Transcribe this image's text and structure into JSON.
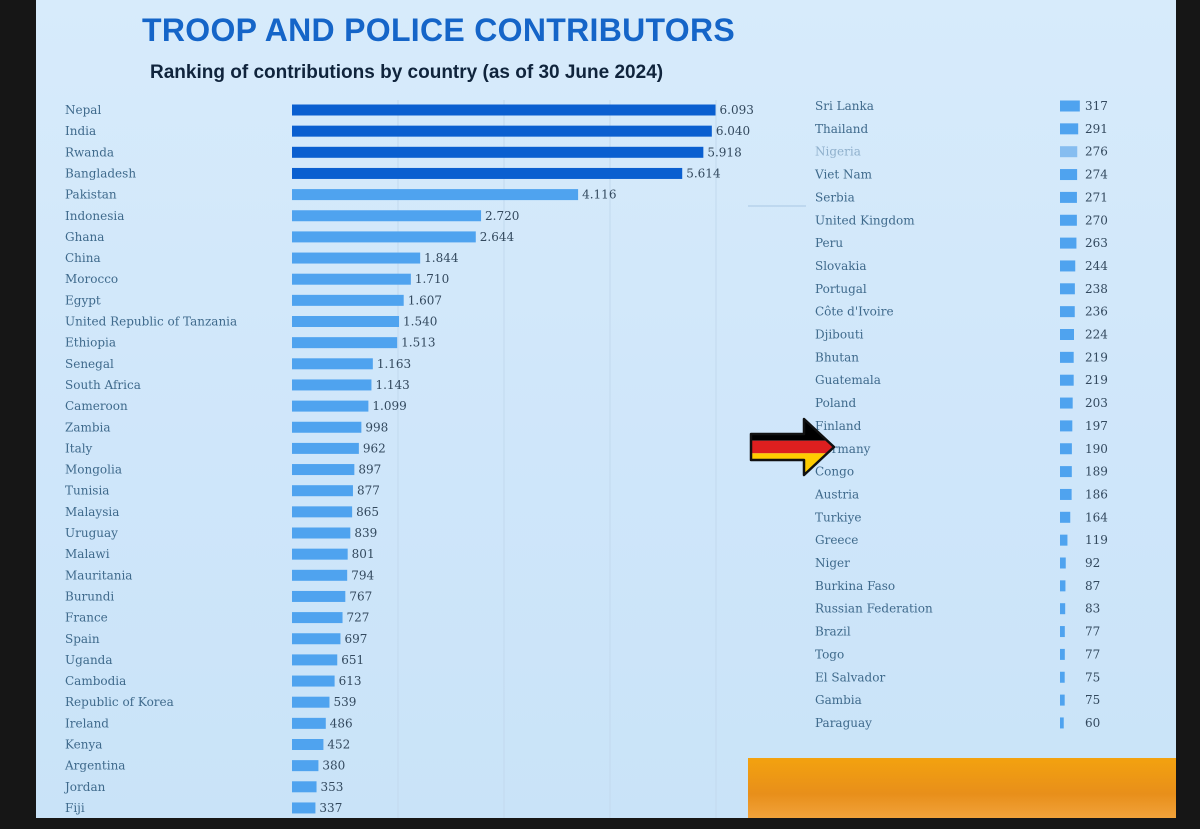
{
  "title": "TROOP AND POLICE CONTRIBUTORS",
  "subtitle": "Ranking of contributions by country (as of 30 June 2024)",
  "colors": {
    "bar_dark": "#0a5fd0",
    "bar_light": "#4fa3ef",
    "title": "#1565c8",
    "accent": "#f29b12"
  },
  "chart_data": [
    {
      "type": "bar",
      "orientation": "horizontal",
      "categories": [
        "Nepal",
        "India",
        "Rwanda",
        "Bangladesh",
        "Pakistan",
        "Indonesia",
        "Ghana",
        "China",
        "Morocco",
        "Egypt",
        "United Republic of Tanzania",
        "Ethiopia",
        "Senegal",
        "South Africa",
        "Cameroon",
        "Zambia",
        "Italy",
        "Mongolia",
        "Tunisia",
        "Malaysia",
        "Uruguay",
        "Malawi",
        "Mauritania",
        "Burundi",
        "France",
        "Spain",
        "Uganda",
        "Cambodia",
        "Republic of Korea",
        "Ireland",
        "Kenya",
        "Argentina",
        "Jordan",
        "Fiji"
      ],
      "values": [
        6093,
        6040,
        5918,
        5614,
        4116,
        2720,
        2644,
        1844,
        1710,
        1607,
        1540,
        1513,
        1163,
        1143,
        1099,
        998,
        962,
        897,
        877,
        865,
        839,
        801,
        794,
        767,
        727,
        697,
        651,
        613,
        539,
        486,
        452,
        380,
        353,
        337
      ],
      "labels": [
        "6.093",
        "6.040",
        "5.918",
        "5.614",
        "4.116",
        "2.720",
        "2.644",
        "1.844",
        "1.710",
        "1.607",
        "1.540",
        "1.513",
        "1.163",
        "1.143",
        "1.099",
        "998",
        "962",
        "897",
        "877",
        "865",
        "839",
        "801",
        "794",
        "767",
        "727",
        "697",
        "651",
        "613",
        "539",
        "486",
        "452",
        "380",
        "353",
        "337"
      ],
      "xlim": [
        0,
        6100
      ],
      "grid": true
    },
    {
      "type": "bar",
      "orientation": "horizontal",
      "categories": [
        "Sri Lanka",
        "Thailand",
        "Nigeria",
        "Viet Nam",
        "Serbia",
        "United Kingdom",
        "Peru",
        "Slovakia",
        "Portugal",
        "Côte d'Ivoire",
        "Djibouti",
        "Bhutan",
        "Guatemala",
        "Poland",
        "Finland",
        "Germany",
        "Congo",
        "Austria",
        "Turkiye",
        "Greece",
        "Niger",
        "Burkina Faso",
        "Russian Federation",
        "Brazil",
        "Togo",
        "El Salvador",
        "Gambia",
        "Paraguay"
      ],
      "values": [
        317,
        291,
        276,
        274,
        271,
        270,
        263,
        244,
        238,
        236,
        224,
        219,
        219,
        203,
        197,
        190,
        189,
        186,
        164,
        119,
        92,
        87,
        83,
        77,
        77,
        75,
        75,
        60
      ],
      "labels": [
        "317",
        "291",
        "276",
        "274",
        "271",
        "270",
        "263",
        "244",
        "238",
        "236",
        "224",
        "219",
        "219",
        "203",
        "197",
        "190",
        "189",
        "186",
        "164",
        "119",
        "92",
        "87",
        "83",
        "77",
        "77",
        "75",
        "75",
        "60"
      ],
      "xlim": [
        0,
        320
      ],
      "highlight": "Germany"
    }
  ]
}
